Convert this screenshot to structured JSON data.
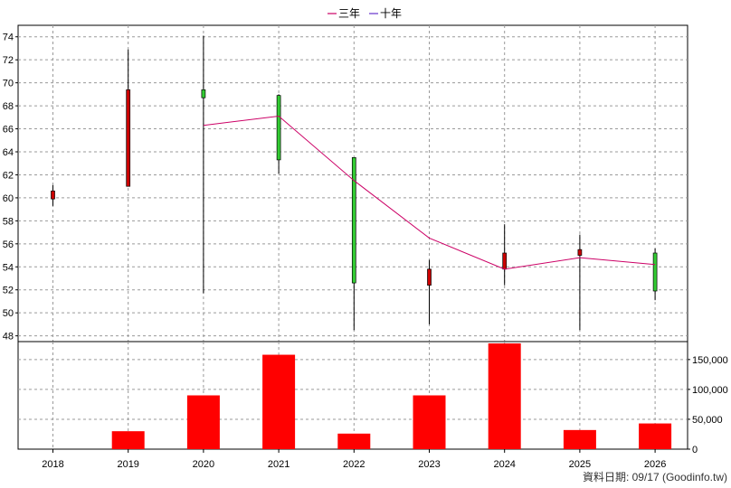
{
  "chart_data": [
    {
      "type": "candlestick",
      "legend": [
        {
          "name": "三年",
          "color": "#cc0066"
        },
        {
          "name": "十年",
          "color": "#6633cc"
        }
      ],
      "x": [
        "2018",
        "2019",
        "2020",
        "2021",
        "2022",
        "2023",
        "2024",
        "2025",
        "2026"
      ],
      "ylim": [
        47.5,
        75
      ],
      "yticks": [
        48,
        50,
        52,
        54,
        56,
        58,
        60,
        62,
        64,
        66,
        68,
        70,
        72,
        74
      ],
      "grid": true,
      "candles": [
        {
          "x": "2018",
          "open": 60.6,
          "close": 59.9,
          "high": 61.1,
          "low": 59.3
        },
        {
          "x": "2019",
          "open": 69.4,
          "close": 61.0,
          "high": 72.9,
          "low": 61.0
        },
        {
          "x": "2020",
          "open": 68.7,
          "close": 69.4,
          "high": 74.1,
          "low": 51.7
        },
        {
          "x": "2021",
          "open": 63.3,
          "close": 68.9,
          "high": 69.0,
          "low": 62.1
        },
        {
          "x": "2022",
          "open": 52.6,
          "close": 63.5,
          "high": 63.5,
          "low": 48.5
        },
        {
          "x": "2023",
          "open": 53.8,
          "close": 52.4,
          "high": 54.6,
          "low": 49.0
        },
        {
          "x": "2024",
          "open": 55.2,
          "close": 53.8,
          "high": 57.7,
          "low": 52.4
        },
        {
          "x": "2025",
          "open": 55.5,
          "close": 55.0,
          "high": 56.8,
          "low": 48.5
        },
        {
          "x": "2026",
          "open": 51.9,
          "close": 55.2,
          "high": 55.6,
          "low": 51.1
        }
      ],
      "three_year_line": [
        {
          "x": "2020",
          "y": 66.3
        },
        {
          "x": "2021",
          "y": 67.1
        },
        {
          "x": "2022",
          "y": 61.5
        },
        {
          "x": "2023",
          "y": 56.5
        },
        {
          "x": "2024",
          "y": 53.8
        },
        {
          "x": "2025",
          "y": 54.8
        },
        {
          "x": "2026",
          "y": 54.2
        }
      ],
      "colors": {
        "up": "#33cc33",
        "down": "#cc0000",
        "line": "#cc0066"
      }
    },
    {
      "type": "bar",
      "categories": [
        "2018",
        "2019",
        "2020",
        "2021",
        "2022",
        "2023",
        "2024",
        "2025",
        "2026"
      ],
      "values": [
        0,
        30000,
        90000,
        158000,
        26000,
        90000,
        177000,
        32000,
        43000
      ],
      "ylim": [
        0,
        180000
      ],
      "yticks": [
        0,
        50000,
        100000,
        150000
      ],
      "ytick_labels": [
        "0",
        "50,000",
        "100,000",
        "150,000"
      ],
      "color": "#ff0000"
    }
  ],
  "footnote": "資料日期: 09/17  (Goodinfo.tw)"
}
